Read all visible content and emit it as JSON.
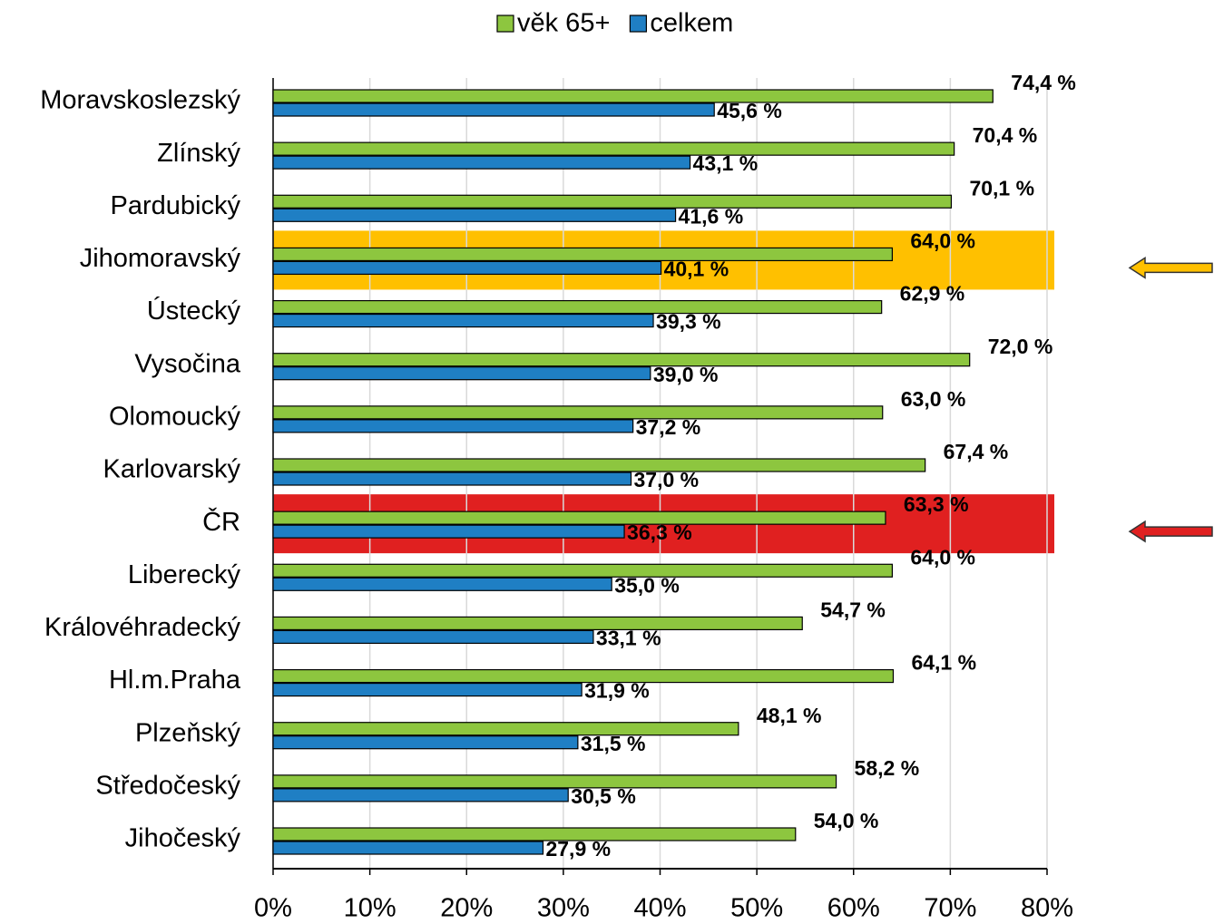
{
  "chart_data": {
    "type": "bar",
    "orientation": "horizontal",
    "categories": [
      "Moravskoslezský",
      "Zlínský",
      "Pardubický",
      "Jihomoravský",
      "Ústecký",
      "Vysočina",
      "Olomoucký",
      "Karlovarský",
      "ČR",
      "Liberecký",
      "Královéhradecký",
      "Hl.m.Praha",
      "Plzeňský",
      "Středočeský",
      "Jihočeský"
    ],
    "series": [
      {
        "name": "věk 65+",
        "color": "#8dc63f",
        "values": [
          74.4,
          70.4,
          70.1,
          64.0,
          62.9,
          72.0,
          63.0,
          67.4,
          63.3,
          64.0,
          54.7,
          64.1,
          48.1,
          58.2,
          54.0
        ],
        "value_labels": [
          "74,4 %",
          "70,4 %",
          "70,1 %",
          "64,0 %",
          "62,9 %",
          "72,0 %",
          "63,0 %",
          "67,4 %",
          "63,3 %",
          "64,0 %",
          "54,7 %",
          "64,1 %",
          "48,1 %",
          "58,2 %",
          "54,0 %"
        ]
      },
      {
        "name": "celkem",
        "color": "#1f7fc4",
        "values": [
          45.6,
          43.1,
          41.6,
          40.1,
          39.3,
          39.0,
          37.2,
          37.0,
          36.3,
          35.0,
          33.1,
          31.9,
          31.5,
          30.5,
          27.9
        ],
        "value_labels": [
          "45,6 %",
          "43,1 %",
          "41,6 %",
          "40,1 %",
          "39,3 %",
          "39,0 %",
          "37,2 %",
          "37,0 %",
          "36,3 %",
          "35,0 %",
          "33,1 %",
          "31,9 %",
          "31,5 %",
          "30,5 %",
          "27,9 %"
        ]
      }
    ],
    "highlight": [
      null,
      null,
      null,
      "#ffc000",
      null,
      null,
      null,
      null,
      "#e02020",
      null,
      null,
      null,
      null,
      null,
      null
    ],
    "xlim": [
      0,
      80
    ],
    "xticks": [
      {
        "value": 0,
        "label": "0%"
      },
      {
        "value": 10,
        "label": "10%"
      },
      {
        "value": 20,
        "label": "20%"
      },
      {
        "value": 30,
        "label": "30%"
      },
      {
        "value": 40,
        "label": "40%"
      },
      {
        "value": 50,
        "label": "50%"
      },
      {
        "value": 60,
        "label": "60%"
      },
      {
        "value": 70,
        "label": "70%"
      },
      {
        "value": 80,
        "label": "80%"
      }
    ],
    "grid": true,
    "legend": "top"
  }
}
